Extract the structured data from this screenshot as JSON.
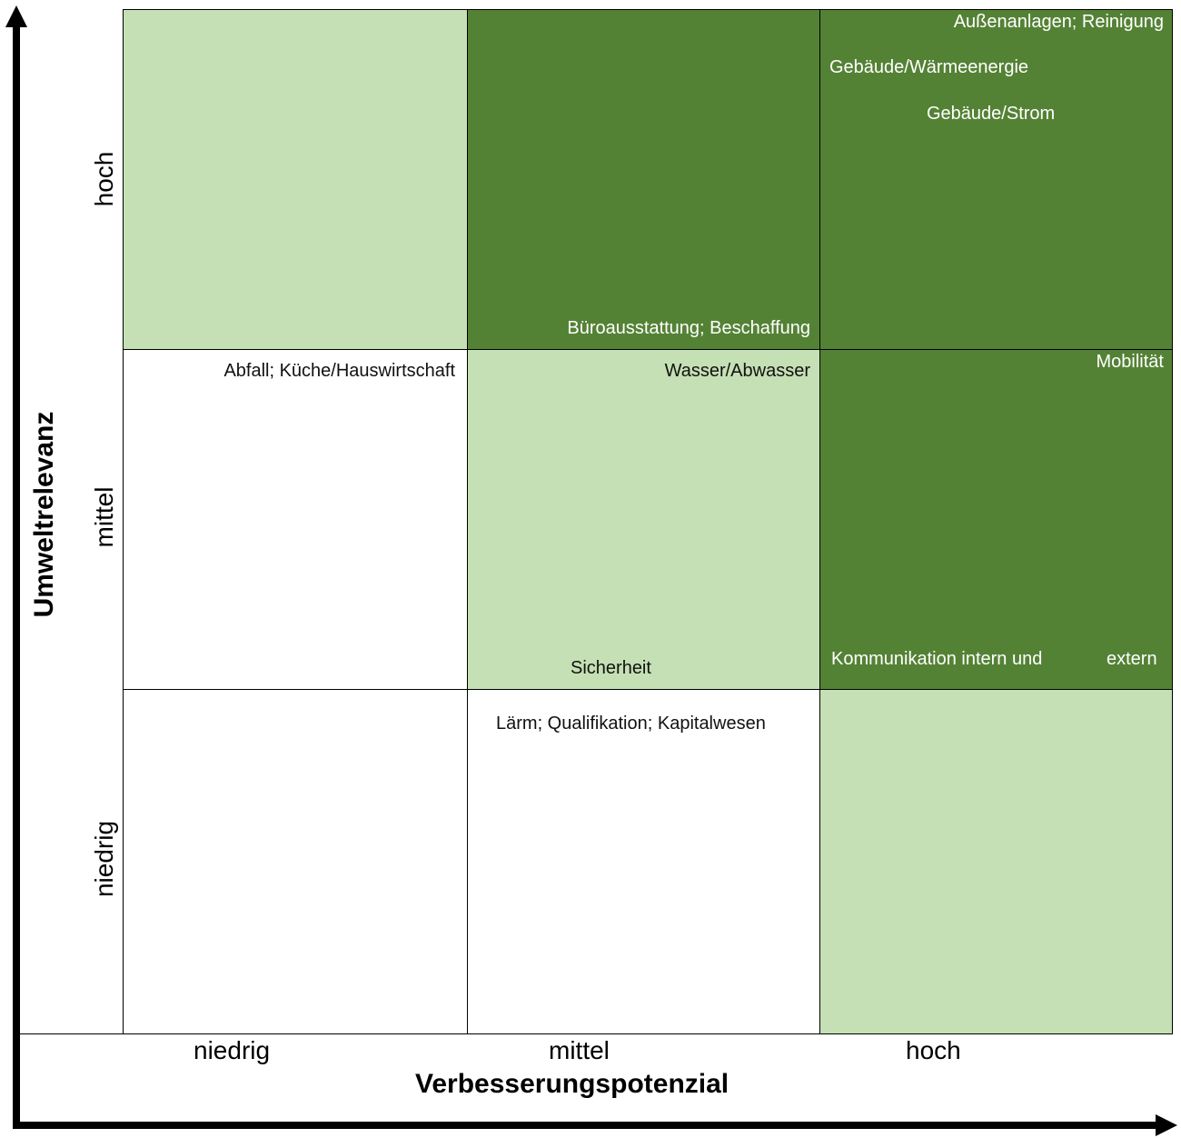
{
  "colors": {
    "high": "#548235",
    "medium": "#c5e0b4",
    "low": "#ffffff"
  },
  "y_axis": {
    "title": "Umweltrelevanz",
    "ticks": [
      "hoch",
      "mittel",
      "niedrig"
    ]
  },
  "x_axis": {
    "title": "Verbesserungspotenzial",
    "ticks": [
      "niedrig",
      "mittel",
      "hoch"
    ]
  },
  "cells": {
    "r0c1": [
      "Büroausstattung; Beschaffung"
    ],
    "r0c2": [
      "Außenanlagen; Reinigung",
      "Gebäude/Wärmeenergie",
      "Gebäude/Strom"
    ],
    "r1c0": [
      "Abfall; Küche/Hauswirtschaft"
    ],
    "r1c1": [
      "Wasser/Abwasser",
      "Sicherheit"
    ],
    "r1c2": [
      "Mobilität",
      "Kommunikation intern und",
      "extern"
    ],
    "r2c1": [
      "Lärm; Qualifikation; Kapitalwesen"
    ]
  }
}
